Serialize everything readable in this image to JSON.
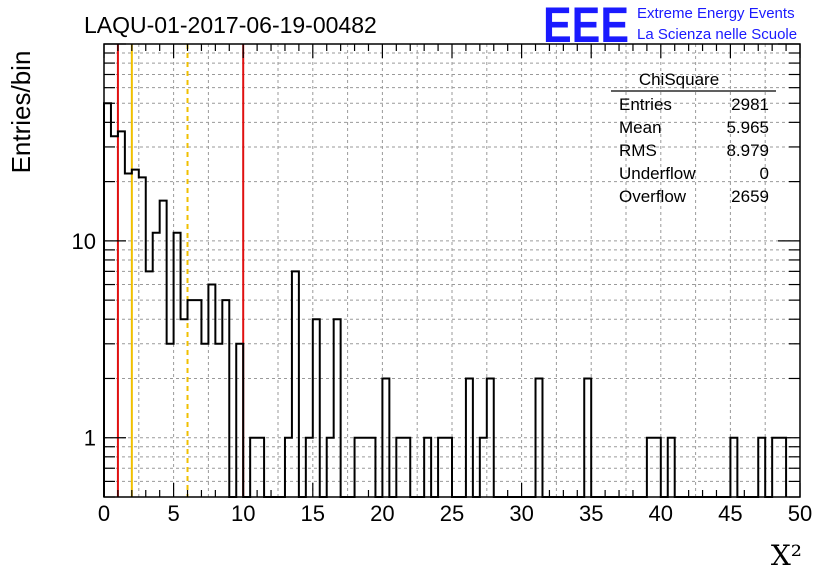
{
  "logo": {
    "mark": "EEE",
    "line1": "Extreme Energy Events",
    "line2": "La Scienza nelle Scuole"
  },
  "colors": {
    "histogram": "#000000",
    "red_line": "#e01010",
    "yellow_line": "#f0c000",
    "grid": "#9a9a9a",
    "logo": "#1a1aff"
  },
  "stats": {
    "title": "ChiSquare",
    "rows": [
      {
        "label": "Entries",
        "value": "2981"
      },
      {
        "label": "Mean",
        "value": "5.965"
      },
      {
        "label": "RMS",
        "value": "8.979"
      },
      {
        "label": "Underflow",
        "value": "0"
      },
      {
        "label": "Overflow",
        "value": "2659"
      }
    ]
  },
  "chart_data": {
    "type": "histogram",
    "title": "LAQU-01-2017-06-19-00482",
    "xlabel": "X²",
    "ylabel": "Entries/bin",
    "xlim": [
      0,
      50
    ],
    "ylim": [
      0.5,
      100
    ],
    "yscale": "log",
    "grid": true,
    "bin_width": 0.5,
    "x_ticks": [
      "0",
      "5",
      "10",
      "15",
      "20",
      "25",
      "30",
      "35",
      "40",
      "45",
      "50"
    ],
    "y_ticks": [
      {
        "value": 1,
        "label": "1"
      },
      {
        "value": 10,
        "label": "10"
      }
    ],
    "bin_counts": [
      50,
      34,
      36,
      22,
      23,
      21,
      7,
      11,
      16,
      3,
      11,
      4,
      5,
      5,
      3,
      6,
      3,
      5,
      0,
      3,
      0,
      1,
      1,
      0,
      0,
      0,
      1,
      7,
      0,
      1,
      4,
      0,
      1,
      4,
      0,
      0,
      1,
      1,
      1,
      0,
      2,
      0,
      1,
      1,
      0,
      0,
      1,
      0,
      1,
      1,
      0,
      0,
      2,
      0,
      1,
      2,
      0,
      0,
      0,
      0,
      0,
      0,
      2,
      0,
      0,
      0,
      0,
      0,
      0,
      2,
      0,
      0,
      0,
      0,
      0,
      0,
      0,
      0,
      1,
      1,
      0,
      1,
      0,
      0,
      0,
      0,
      0,
      0,
      0,
      0,
      1,
      0,
      0,
      0,
      1,
      0,
      1,
      1
    ],
    "vertical_lines": [
      {
        "x": 1,
        "color": "red",
        "style": "solid"
      },
      {
        "x": 2,
        "color": "yellow",
        "style": "solid"
      },
      {
        "x": 6,
        "color": "yellow",
        "style": "dashed"
      },
      {
        "x": 10,
        "color": "red",
        "style": "solid"
      }
    ]
  }
}
